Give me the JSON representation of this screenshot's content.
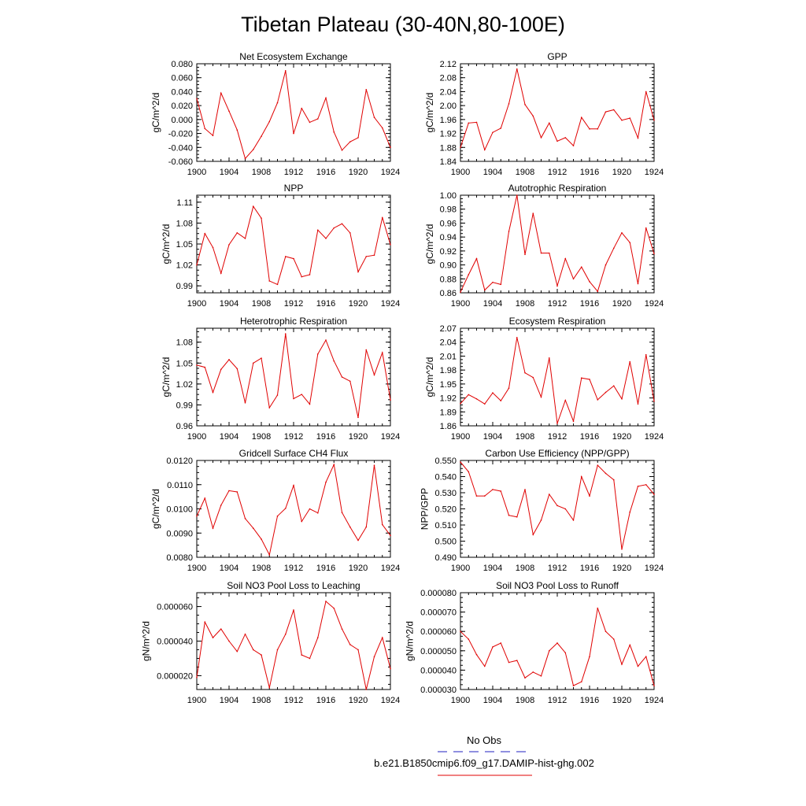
{
  "figure": {
    "title": "Tibetan Plateau (30-40N,80-100E)",
    "line_color": "#e00000",
    "obs_color": "#2020c0",
    "legend": [
      {
        "label": "No Obs",
        "style": "dashed",
        "color": "#2020c0"
      },
      {
        "label": "b.e21.B1850cmip6.f09_g17.DAMIP-hist-ghg.002",
        "style": "solid",
        "color": "#e00000"
      }
    ]
  },
  "chart_data": [
    {
      "type": "line",
      "title": "Net Ecosystem Exchange",
      "ylabel": "gC/m^2/d",
      "xlim": [
        1900,
        1924
      ],
      "ylim": [
        -0.06,
        0.08
      ],
      "xticks": [
        "1900",
        "1904",
        "1908",
        "1912",
        "1916",
        "1920",
        "1924"
      ],
      "yticks": [
        "-0.060",
        "-0.040",
        "-0.020",
        "0.000",
        "0.020",
        "0.040",
        "0.060",
        "0.080"
      ],
      "x": [
        1900,
        1901,
        1902,
        1903,
        1904,
        1905,
        1906,
        1907,
        1908,
        1909,
        1910,
        1911,
        1912,
        1913,
        1914,
        1915,
        1916,
        1917,
        1918,
        1919,
        1920,
        1921,
        1922,
        1923,
        1924
      ],
      "values": [
        0.03,
        -0.013,
        -0.023,
        0.038,
        0.012,
        -0.015,
        -0.056,
        -0.043,
        -0.024,
        -0.003,
        0.024,
        0.07,
        -0.02,
        0.016,
        -0.004,
        0.001,
        0.031,
        -0.018,
        -0.044,
        -0.032,
        -0.026,
        0.043,
        0.003,
        -0.012,
        -0.04
      ]
    },
    {
      "type": "line",
      "title": "GPP",
      "ylabel": "gC/m^2/d",
      "xlim": [
        1900,
        1924
      ],
      "ylim": [
        1.84,
        2.12
      ],
      "xticks": [
        "1900",
        "1904",
        "1908",
        "1912",
        "1916",
        "1920",
        "1924"
      ],
      "yticks": [
        "1.84",
        "1.88",
        "1.92",
        "1.96",
        "2.00",
        "2.04",
        "2.08",
        "2.12"
      ],
      "x": [
        1900,
        1901,
        1902,
        1903,
        1904,
        1905,
        1906,
        1907,
        1908,
        1909,
        1910,
        1911,
        1912,
        1913,
        1914,
        1915,
        1916,
        1917,
        1918,
        1919,
        1920,
        1921,
        1922,
        1923,
        1924
      ],
      "values": [
        1.88,
        1.95,
        1.952,
        1.873,
        1.923,
        1.935,
        2.005,
        2.105,
        2.003,
        1.97,
        1.908,
        1.95,
        1.898,
        1.908,
        1.885,
        1.966,
        1.933,
        1.933,
        1.982,
        1.988,
        1.958,
        1.964,
        1.907,
        2.04,
        1.958
      ]
    },
    {
      "type": "line",
      "title": "NPP",
      "ylabel": "gC/m^2/d",
      "xlim": [
        1900,
        1924
      ],
      "ylim": [
        0.98,
        1.12
      ],
      "xticks": [
        "1900",
        "1904",
        "1908",
        "1912",
        "1916",
        "1920",
        "1924"
      ],
      "yticks": [
        "0.99",
        "1.02",
        "1.05",
        "1.08",
        "1.11"
      ],
      "x": [
        1900,
        1901,
        1902,
        1903,
        1904,
        1905,
        1906,
        1907,
        1908,
        1909,
        1910,
        1911,
        1912,
        1913,
        1914,
        1915,
        1916,
        1917,
        1918,
        1919,
        1920,
        1921,
        1922,
        1923,
        1924
      ],
      "values": [
        1.02,
        1.065,
        1.045,
        1.008,
        1.049,
        1.066,
        1.058,
        1.104,
        1.087,
        0.997,
        0.992,
        1.032,
        1.029,
        1.003,
        1.006,
        1.07,
        1.058,
        1.073,
        1.079,
        1.066,
        1.01,
        1.032,
        1.034,
        1.088,
        1.049
      ]
    },
    {
      "type": "line",
      "title": "Autotrophic Respiration",
      "ylabel": "gC/m^2/d",
      "xlim": [
        1900,
        1924
      ],
      "ylim": [
        0.86,
        1.0
      ],
      "xticks": [
        "1900",
        "1904",
        "1908",
        "1912",
        "1916",
        "1920",
        "1924"
      ],
      "yticks": [
        "0.86",
        "0.88",
        "0.90",
        "0.92",
        "0.94",
        "0.96",
        "0.98",
        "1.00"
      ],
      "x": [
        1900,
        1901,
        1902,
        1903,
        1904,
        1905,
        1906,
        1907,
        1908,
        1909,
        1910,
        1911,
        1912,
        1913,
        1914,
        1915,
        1916,
        1917,
        1918,
        1919,
        1920,
        1921,
        1922,
        1923,
        1924
      ],
      "values": [
        0.861,
        0.886,
        0.909,
        0.864,
        0.875,
        0.872,
        0.948,
        1.0,
        0.915,
        0.974,
        0.917,
        0.917,
        0.87,
        0.909,
        0.88,
        0.897,
        0.876,
        0.862,
        0.9,
        0.924,
        0.946,
        0.932,
        0.873,
        0.953,
        0.916
      ]
    },
    {
      "type": "line",
      "title": "Heterotrophic Respiration",
      "ylabel": "gC/m^2/d",
      "xlim": [
        1900,
        1924
      ],
      "ylim": [
        0.96,
        1.1
      ],
      "xticks": [
        "1900",
        "1904",
        "1908",
        "1912",
        "1916",
        "1920",
        "1924"
      ],
      "yticks": [
        "0.96",
        "0.99",
        "1.02",
        "1.05",
        "1.08"
      ],
      "x": [
        1900,
        1901,
        1902,
        1903,
        1904,
        1905,
        1906,
        1907,
        1908,
        1909,
        1910,
        1911,
        1912,
        1913,
        1914,
        1915,
        1916,
        1917,
        1918,
        1919,
        1920,
        1921,
        1922,
        1923,
        1924
      ],
      "values": [
        1.047,
        1.044,
        1.008,
        1.041,
        1.055,
        1.042,
        0.993,
        1.05,
        1.057,
        0.986,
        1.004,
        1.092,
        0.999,
        1.005,
        0.991,
        1.063,
        1.083,
        1.053,
        1.03,
        1.024,
        0.972,
        1.069,
        1.033,
        1.065,
        0.997
      ]
    },
    {
      "type": "line",
      "title": "Ecosystem Respiration",
      "ylabel": "gC/m^2/d",
      "xlim": [
        1900,
        1924
      ],
      "ylim": [
        1.86,
        2.07
      ],
      "xticks": [
        "1900",
        "1904",
        "1908",
        "1912",
        "1916",
        "1920",
        "1924"
      ],
      "yticks": [
        "1.86",
        "1.89",
        "1.92",
        "1.95",
        "1.98",
        "2.01",
        "2.04",
        "2.07"
      ],
      "x": [
        1900,
        1901,
        1902,
        1903,
        1904,
        1905,
        1906,
        1907,
        1908,
        1909,
        1910,
        1911,
        1912,
        1913,
        1914,
        1915,
        1916,
        1917,
        1918,
        1919,
        1920,
        1921,
        1922,
        1923,
        1924
      ],
      "values": [
        1.908,
        1.927,
        1.918,
        1.907,
        1.931,
        1.914,
        1.941,
        2.05,
        1.974,
        1.964,
        1.922,
        2.006,
        1.865,
        1.915,
        1.87,
        1.963,
        1.96,
        1.916,
        1.932,
        1.946,
        1.918,
        1.998,
        1.907,
        2.013,
        1.913
      ]
    },
    {
      "type": "line",
      "title": "Gridcell Surface CH4 Flux",
      "ylabel": "gC/m^2/d",
      "xlim": [
        1900,
        1924
      ],
      "ylim": [
        0.008,
        0.012
      ],
      "xticks": [
        "1900",
        "1904",
        "1908",
        "1912",
        "1916",
        "1920",
        "1924"
      ],
      "yticks": [
        "0.0080",
        "0.0090",
        "0.0100",
        "0.0110",
        "0.0120"
      ],
      "x": [
        1900,
        1901,
        1902,
        1903,
        1904,
        1905,
        1906,
        1907,
        1908,
        1909,
        1910,
        1911,
        1912,
        1913,
        1914,
        1915,
        1916,
        1917,
        1918,
        1919,
        1920,
        1921,
        1922,
        1923,
        1924
      ],
      "values": [
        0.0097,
        0.01044,
        0.0092,
        0.01015,
        0.01075,
        0.0107,
        0.0096,
        0.0092,
        0.00875,
        0.0081,
        0.0097,
        0.01002,
        0.01097,
        0.00948,
        0.01,
        0.00983,
        0.0111,
        0.01183,
        0.00985,
        0.00925,
        0.0087,
        0.00925,
        0.0118,
        0.00935,
        0.0089
      ]
    },
    {
      "type": "line",
      "title": "Carbon Use Efficiency (NPP/GPP)",
      "ylabel": "NPP/GPP",
      "xlim": [
        1900,
        1924
      ],
      "ylim": [
        0.49,
        0.55
      ],
      "xticks": [
        "1900",
        "1904",
        "1908",
        "1912",
        "1916",
        "1920",
        "1924"
      ],
      "yticks": [
        "0.490",
        "0.500",
        "0.510",
        "0.520",
        "0.530",
        "0.540",
        "0.550"
      ],
      "x": [
        1900,
        1901,
        1902,
        1903,
        1904,
        1905,
        1906,
        1907,
        1908,
        1909,
        1910,
        1911,
        1912,
        1913,
        1914,
        1915,
        1916,
        1917,
        1918,
        1919,
        1920,
        1921,
        1922,
        1923,
        1924
      ],
      "values": [
        0.549,
        0.543,
        0.528,
        0.528,
        0.532,
        0.531,
        0.516,
        0.515,
        0.532,
        0.504,
        0.513,
        0.529,
        0.522,
        0.52,
        0.513,
        0.54,
        0.528,
        0.547,
        0.542,
        0.538,
        0.495,
        0.518,
        0.534,
        0.535,
        0.529
      ]
    },
    {
      "type": "line",
      "title": "Soil NO3 Pool Loss to Leaching",
      "ylabel": "gN/m^2/d",
      "xlim": [
        1900,
        1924
      ],
      "ylim": [
        1.2e-05,
        6.8e-05
      ],
      "xticks": [
        "1900",
        "1904",
        "1908",
        "1912",
        "1916",
        "1920",
        "1924"
      ],
      "yticks": [
        "0.000020",
        "0.000040",
        "0.000060"
      ],
      "x": [
        1900,
        1901,
        1902,
        1903,
        1904,
        1905,
        1906,
        1907,
        1908,
        1909,
        1910,
        1911,
        1912,
        1913,
        1914,
        1915,
        1916,
        1917,
        1918,
        1919,
        1920,
        1921,
        1922,
        1923,
        1924
      ],
      "values": [
        1.9e-05,
        5.1e-05,
        4.2e-05,
        4.7e-05,
        4e-05,
        3.4e-05,
        4.4e-05,
        3.5e-05,
        3.2e-05,
        1.3e-05,
        3.5e-05,
        4.4e-05,
        5.8e-05,
        3.2e-05,
        3e-05,
        4.2e-05,
        6.3e-05,
        5.9e-05,
        4.7e-05,
        3.8e-05,
        3.5e-05,
        1.2e-05,
        3.1e-05,
        4.2e-05,
        2.4e-05
      ]
    },
    {
      "type": "line",
      "title": "Soil NO3 Pool Loss to Runoff",
      "ylabel": "gN/m^2/d",
      "xlim": [
        1900,
        1924
      ],
      "ylim": [
        3e-05,
        8e-05
      ],
      "xticks": [
        "1900",
        "1904",
        "1908",
        "1912",
        "1916",
        "1920",
        "1924"
      ],
      "yticks": [
        "0.000030",
        "0.000040",
        "0.000050",
        "0.000060",
        "0.000070",
        "0.000080"
      ],
      "x": [
        1900,
        1901,
        1902,
        1903,
        1904,
        1905,
        1906,
        1907,
        1908,
        1909,
        1910,
        1911,
        1912,
        1913,
        1914,
        1915,
        1916,
        1917,
        1918,
        1919,
        1920,
        1921,
        1922,
        1923,
        1924
      ],
      "values": [
        6e-05,
        5.6e-05,
        4.8e-05,
        4.2e-05,
        5.2e-05,
        5.4e-05,
        4.4e-05,
        4.5e-05,
        3.6e-05,
        3.9e-05,
        3.7e-05,
        5e-05,
        5.4e-05,
        4.9e-05,
        3.2e-05,
        3.4e-05,
        4.7e-05,
        7.2e-05,
        6e-05,
        5.6e-05,
        4.3e-05,
        5.3e-05,
        4.2e-05,
        4.7e-05,
        3.2e-05
      ]
    }
  ]
}
